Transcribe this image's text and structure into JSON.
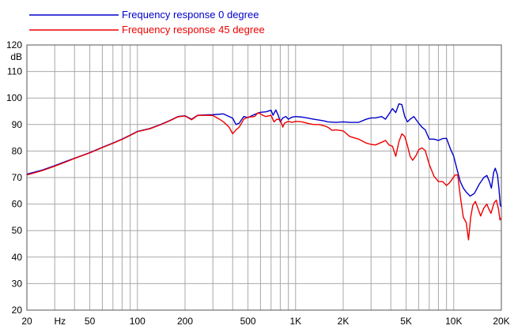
{
  "chart_data": {
    "type": "line",
    "x_scale": "log",
    "xlim": [
      20,
      20000
    ],
    "ylim": [
      20,
      120
    ],
    "grid": true,
    "ylabel": "dB",
    "xlabel": "Hz",
    "legend_position": "top-left",
    "x_ticks": [
      {
        "value": 20,
        "label": "20"
      },
      {
        "value": 50,
        "label": "50"
      },
      {
        "value": 100,
        "label": "100"
      },
      {
        "value": 200,
        "label": "200"
      },
      {
        "value": 500,
        "label": "500"
      },
      {
        "value": 1000,
        "label": "1K"
      },
      {
        "value": 2000,
        "label": "2K"
      },
      {
        "value": 5000,
        "label": "5K"
      },
      {
        "value": 10000,
        "label": "10K"
      },
      {
        "value": 20000,
        "label": "20K"
      }
    ],
    "y_ticks": [
      20,
      30,
      40,
      50,
      60,
      70,
      80,
      90,
      100,
      110,
      120
    ],
    "series": [
      {
        "name": "Frequency response 0 degree",
        "color": "#0000cc",
        "points": [
          [
            20,
            71.3
          ],
          [
            25,
            72.8
          ],
          [
            30,
            74.5
          ],
          [
            35,
            76.0
          ],
          [
            40,
            77.3
          ],
          [
            50,
            79.4
          ],
          [
            60,
            81.4
          ],
          [
            70,
            83.0
          ],
          [
            80,
            84.5
          ],
          [
            90,
            86.0
          ],
          [
            100,
            87.4
          ],
          [
            120,
            88.5
          ],
          [
            140,
            90.0
          ],
          [
            160,
            91.5
          ],
          [
            180,
            93.0
          ],
          [
            200,
            93.3
          ],
          [
            220,
            92.0
          ],
          [
            240,
            93.5
          ],
          [
            260,
            93.6
          ],
          [
            300,
            93.7
          ],
          [
            350,
            94.0
          ],
          [
            400,
            92.4
          ],
          [
            420,
            90.0
          ],
          [
            440,
            90.5
          ],
          [
            470,
            93.0
          ],
          [
            500,
            92.6
          ],
          [
            550,
            93.8
          ],
          [
            600,
            94.6
          ],
          [
            650,
            94.8
          ],
          [
            700,
            95.4
          ],
          [
            720,
            93.5
          ],
          [
            750,
            95.5
          ],
          [
            780,
            93.2
          ],
          [
            800,
            91.0
          ],
          [
            830,
            92.5
          ],
          [
            870,
            93.0
          ],
          [
            900,
            92.0
          ],
          [
            950,
            92.8
          ],
          [
            1000,
            93.0
          ],
          [
            1100,
            92.8
          ],
          [
            1200,
            92.4
          ],
          [
            1300,
            92.0
          ],
          [
            1400,
            91.7
          ],
          [
            1500,
            91.4
          ],
          [
            1600,
            91.0
          ],
          [
            1700,
            90.9
          ],
          [
            1800,
            90.8
          ],
          [
            2000,
            91.0
          ],
          [
            2200,
            90.8
          ],
          [
            2500,
            90.8
          ],
          [
            2800,
            92.0
          ],
          [
            3000,
            92.5
          ],
          [
            3200,
            92.5
          ],
          [
            3500,
            93.0
          ],
          [
            3700,
            92.0
          ],
          [
            3900,
            94.0
          ],
          [
            4100,
            96.0
          ],
          [
            4300,
            94.5
          ],
          [
            4500,
            97.8
          ],
          [
            4700,
            97.5
          ],
          [
            4900,
            93.0
          ],
          [
            5100,
            91.0
          ],
          [
            5300,
            92.0
          ],
          [
            5600,
            93.0
          ],
          [
            6000,
            90.5
          ],
          [
            6300,
            89.0
          ],
          [
            6600,
            88.0
          ],
          [
            7000,
            84.5
          ],
          [
            7500,
            84.5
          ],
          [
            8000,
            84.0
          ],
          [
            8500,
            84.7
          ],
          [
            9000,
            84.8
          ],
          [
            9500,
            81.0
          ],
          [
            10000,
            78.0
          ],
          [
            10500,
            73.0
          ],
          [
            11000,
            68.5
          ],
          [
            11500,
            66.0
          ],
          [
            12000,
            64.5
          ],
          [
            12700,
            63.0
          ],
          [
            13500,
            64.0
          ],
          [
            14500,
            67.5
          ],
          [
            15500,
            70.0
          ],
          [
            16200,
            70.8
          ],
          [
            16800,
            68.5
          ],
          [
            17300,
            66.0
          ],
          [
            17900,
            72.0
          ],
          [
            18300,
            73.5
          ],
          [
            18900,
            71.0
          ],
          [
            19300,
            66.0
          ],
          [
            19700,
            59.5
          ],
          [
            20000,
            59.0
          ]
        ]
      },
      {
        "name": "Frequency response 45 degree",
        "color": "#ee0000",
        "points": [
          [
            20,
            71.0
          ],
          [
            25,
            72.6
          ],
          [
            30,
            74.3
          ],
          [
            35,
            75.8
          ],
          [
            40,
            77.2
          ],
          [
            50,
            79.3
          ],
          [
            60,
            81.3
          ],
          [
            70,
            82.9
          ],
          [
            80,
            84.4
          ],
          [
            90,
            85.9
          ],
          [
            100,
            87.3
          ],
          [
            120,
            88.4
          ],
          [
            140,
            89.9
          ],
          [
            160,
            91.4
          ],
          [
            180,
            92.9
          ],
          [
            200,
            93.2
          ],
          [
            220,
            91.8
          ],
          [
            240,
            93.4
          ],
          [
            260,
            93.5
          ],
          [
            300,
            93.4
          ],
          [
            330,
            92.0
          ],
          [
            350,
            91.0
          ],
          [
            380,
            89.0
          ],
          [
            400,
            86.5
          ],
          [
            420,
            88.0
          ],
          [
            440,
            89.0
          ],
          [
            470,
            92.0
          ],
          [
            500,
            92.8
          ],
          [
            550,
            93.0
          ],
          [
            580,
            94.5
          ],
          [
            620,
            93.5
          ],
          [
            650,
            93.0
          ],
          [
            700,
            93.5
          ],
          [
            730,
            91.0
          ],
          [
            760,
            92.0
          ],
          [
            800,
            91.8
          ],
          [
            830,
            89.0
          ],
          [
            850,
            90.5
          ],
          [
            900,
            91.2
          ],
          [
            950,
            90.8
          ],
          [
            1000,
            91.2
          ],
          [
            1100,
            91.0
          ],
          [
            1200,
            90.4
          ],
          [
            1300,
            90.0
          ],
          [
            1400,
            90.0
          ],
          [
            1500,
            89.6
          ],
          [
            1600,
            89.0
          ],
          [
            1700,
            87.8
          ],
          [
            1800,
            88.0
          ],
          [
            2000,
            87.6
          ],
          [
            2200,
            85.5
          ],
          [
            2500,
            84.5
          ],
          [
            2800,
            83.0
          ],
          [
            3000,
            82.5
          ],
          [
            3200,
            82.3
          ],
          [
            3500,
            83.3
          ],
          [
            3700,
            84.0
          ],
          [
            3900,
            82.3
          ],
          [
            4100,
            81.8
          ],
          [
            4300,
            78.0
          ],
          [
            4500,
            83.5
          ],
          [
            4700,
            86.5
          ],
          [
            4900,
            85.5
          ],
          [
            5100,
            82.0
          ],
          [
            5300,
            78.0
          ],
          [
            5500,
            76.5
          ],
          [
            5800,
            78.5
          ],
          [
            6000,
            80.5
          ],
          [
            6300,
            81.2
          ],
          [
            6600,
            80.2
          ],
          [
            7000,
            75.0
          ],
          [
            7500,
            70.5
          ],
          [
            8000,
            68.5
          ],
          [
            8500,
            68.5
          ],
          [
            9000,
            67.0
          ],
          [
            9400,
            68.0
          ],
          [
            9800,
            69.5
          ],
          [
            10200,
            71.0
          ],
          [
            10600,
            71.0
          ],
          [
            11000,
            63.0
          ],
          [
            11500,
            55.0
          ],
          [
            12000,
            53.0
          ],
          [
            12400,
            46.5
          ],
          [
            12800,
            55.0
          ],
          [
            13200,
            59.5
          ],
          [
            13700,
            61.0
          ],
          [
            14300,
            58.0
          ],
          [
            14800,
            55.5
          ],
          [
            15500,
            58.5
          ],
          [
            16200,
            60.0
          ],
          [
            16700,
            58.0
          ],
          [
            17200,
            56.5
          ],
          [
            18000,
            60.5
          ],
          [
            18600,
            61.5
          ],
          [
            19200,
            58.0
          ],
          [
            19600,
            54.0
          ],
          [
            20000,
            54.8
          ]
        ]
      }
    ]
  }
}
